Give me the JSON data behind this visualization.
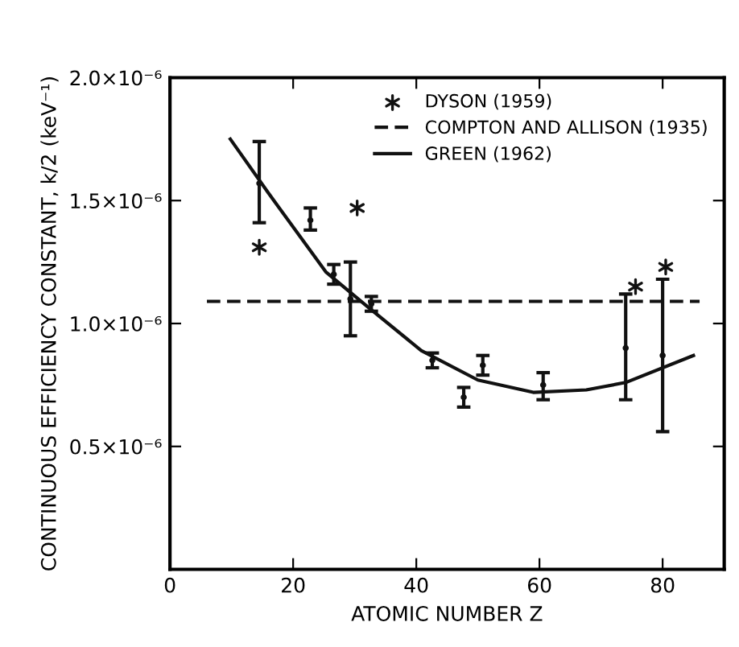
{
  "chart_data": {
    "type": "scatter",
    "xlabel": "ATOMIC NUMBER Z",
    "ylabel": "CONTINUOUS EFFICIENCY CONSTANT, k/2 (keV⁻¹)",
    "xlim": [
      0,
      90
    ],
    "ylim": [
      0,
      2e-06
    ],
    "xticks": [
      0,
      20,
      40,
      60,
      80
    ],
    "yticks": [
      {
        "value": 5e-07,
        "label": "0.5×10⁻⁶"
      },
      {
        "value": 1e-06,
        "label": "1.0×10⁻⁶"
      },
      {
        "value": 1.5e-06,
        "label": "1.5×10⁻⁶"
      },
      {
        "value": 2e-06,
        "label": "2.0×10⁻⁶"
      }
    ],
    "grid": false,
    "legend": "top right",
    "series": [
      {
        "color": "#111111",
        "x": [
          14.5,
          22.8,
          26.6,
          29.3,
          32.7,
          42.6,
          47.7,
          50.8,
          60.6,
          74,
          80
        ],
        "values": [
          1.57e-06,
          1.42e-06,
          1.2e-06,
          1.1e-06,
          1.08e-06,
          8.5e-07,
          7e-07,
          8.3e-07,
          7.5e-07,
          9e-07,
          8.7e-07
        ],
        "errors": [
          [
            1.41e-06,
            1.74e-06
          ],
          [
            1.38e-06,
            1.47e-06
          ],
          [
            1.16e-06,
            1.24e-06
          ],
          [
            9.5e-07,
            1.25e-06
          ],
          [
            1.05e-06,
            1.11e-06
          ],
          [
            8.2e-07,
            8.8e-07
          ],
          [
            6.6e-07,
            7.4e-07
          ],
          [
            7.9e-07,
            8.7e-07
          ],
          [
            6.9e-07,
            8e-07
          ],
          [
            6.9e-07,
            1.12e-06
          ],
          [
            5.6e-07,
            1.18e-06
          ]
        ]
      },
      {
        "name": "DYSON (1959)",
        "marker": "cross",
        "color": "#111111",
        "x": [
          14.5,
          30.4,
          75.6,
          80.5
        ],
        "values": [
          1.31e-06,
          1.47e-06,
          1.15e-06,
          1.23e-06
        ]
      },
      {
        "type": "line",
        "name": "COMPTON AND ALLISON (1935)",
        "line_style": "dashed",
        "marker": "none",
        "color": "#111111",
        "x": [
          6,
          86
        ],
        "values": [
          1.09e-06,
          1.09e-06
        ]
      },
      {
        "type": "line",
        "name": "GREEN (1962)",
        "line_style": "solid",
        "marker": "none",
        "color": "#111111",
        "x": [
          9.8,
          16,
          25.3,
          32,
          40.8,
          50,
          59,
          67.6,
          74,
          85
        ],
        "values": [
          1.75e-06,
          1.53e-06,
          1.21e-06,
          1.07e-06,
          8.9e-07,
          7.7e-07,
          7.2e-07,
          7.3e-07,
          7.6e-07,
          8.7e-07
        ]
      }
    ]
  }
}
